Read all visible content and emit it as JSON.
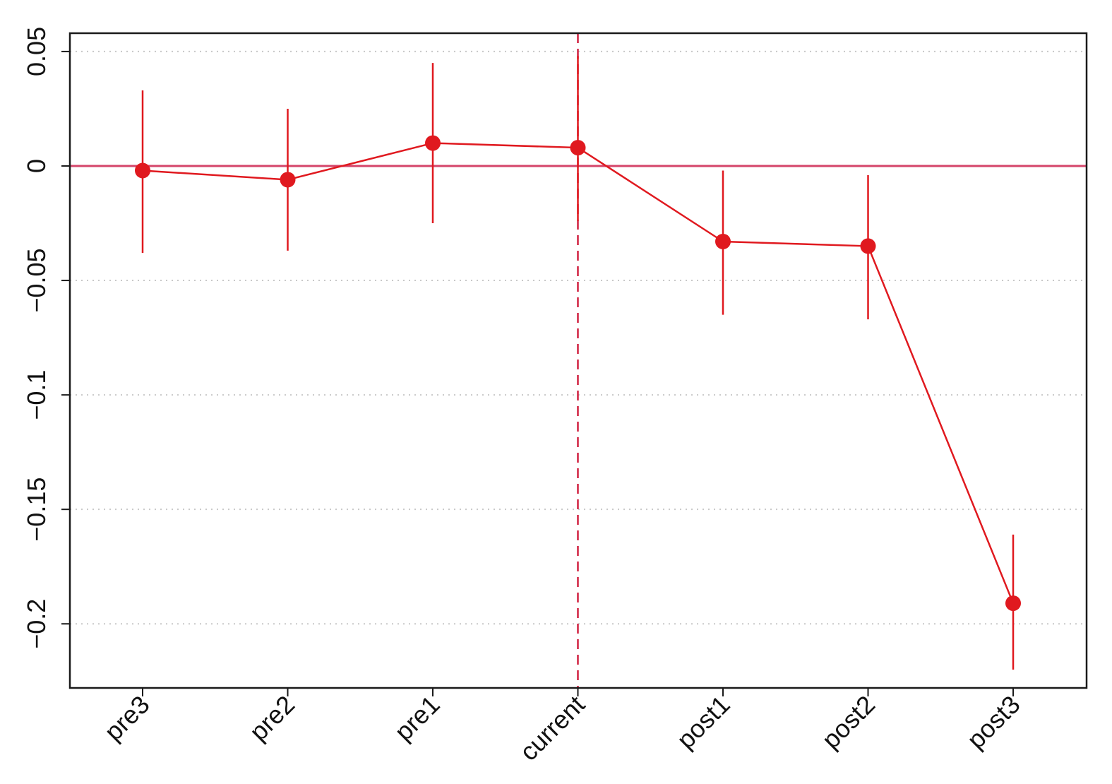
{
  "chart_data": {
    "type": "line",
    "categories": [
      "pre3",
      "pre2",
      "pre1",
      "current",
      "post1",
      "post2",
      "post3"
    ],
    "series": [
      {
        "values": [
          -0.002,
          -0.006,
          0.01,
          0.008,
          -0.033,
          -0.035,
          -0.191
        ],
        "ci_lower": [
          -0.038,
          -0.037,
          -0.025,
          -0.024,
          -0.065,
          -0.067,
          -0.22
        ],
        "ci_upper": [
          0.033,
          0.025,
          0.045,
          0.048,
          -0.002,
          -0.004,
          -0.161
        ]
      }
    ],
    "title": "",
    "xlabel": "",
    "ylabel": "",
    "ylim": [
      -0.228,
      0.058
    ],
    "yticks": [
      0.05,
      0,
      -0.05,
      -0.1,
      -0.15,
      -0.2
    ],
    "ytick_labels": [
      "0.05",
      "0",
      "-0.05",
      "-0.1",
      "-0.15",
      "-0.2"
    ],
    "reference_lines": {
      "horizontal_at": 0,
      "vertical_at_category": "current",
      "vertical_style": "dashed"
    },
    "grid": "horizontal-dotted",
    "legend": "none",
    "colors": {
      "series": "#e0191f",
      "zero_line": "#d4456a",
      "vertical_line": "#d02040",
      "grid": "#c8c8c8",
      "axis": "#1a1a1a"
    }
  }
}
